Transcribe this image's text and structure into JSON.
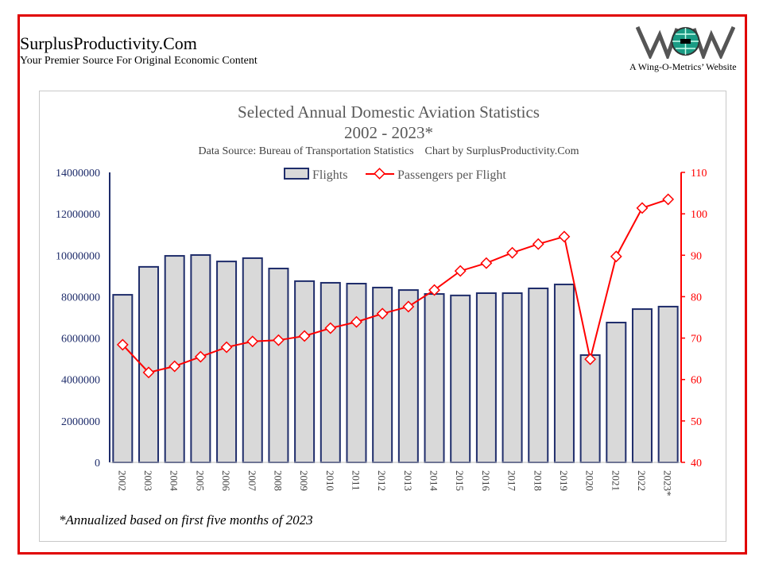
{
  "header": {
    "site_title": "SurplusProductivity.Com",
    "site_subtitle": "Your Premier Source For Original Economic Content",
    "logo_text": "WOM",
    "logo_caption": "A Wing-O-Metrics’ Website"
  },
  "footnote": "*Annualized based on first five months of 2023",
  "colors": {
    "frame": "#e00000",
    "bar_fill": "#d9d9d9",
    "bar_stroke": "#1f2d6b",
    "line": "#ff0000",
    "left_axis": "#1f2d6b",
    "right_axis": "#ff0000"
  },
  "chart_data": {
    "type": "bar+line",
    "title": "Selected Annual  Domestic Aviation Statistics",
    "subtitle": "2002 - 2023*",
    "source": "Data Source: Bureau of Transportation Statistics    Chart by SurplusProductivity.Com",
    "categories": [
      "2002",
      "2003",
      "2004",
      "2005",
      "2006",
      "2007",
      "2008",
      "2009",
      "2010",
      "2011",
      "2012",
      "2013",
      "2014",
      "2015",
      "2016",
      "2017",
      "2018",
      "2019",
      "2020",
      "2021",
      "2022",
      "2023*"
    ],
    "series": [
      {
        "name": "Flights",
        "type": "bar",
        "axis": "left",
        "values": [
          8090000,
          9440000,
          9970000,
          10010000,
          9700000,
          9860000,
          9360000,
          8750000,
          8670000,
          8630000,
          8440000,
          8320000,
          8130000,
          8060000,
          8170000,
          8170000,
          8400000,
          8590000,
          5180000,
          6750000,
          7400000,
          7520000
        ]
      },
      {
        "name": "Passengers per Flight",
        "type": "line",
        "axis": "right",
        "values": [
          68.4,
          61.7,
          63.2,
          65.5,
          67.8,
          69.2,
          69.5,
          70.5,
          72.4,
          73.9,
          75.9,
          77.6,
          81.6,
          86.2,
          88.1,
          90.6,
          92.7,
          94.5,
          64.9,
          89.7,
          101.4,
          103.5
        ]
      }
    ],
    "left_axis": {
      "ylim": [
        0,
        14000000
      ],
      "ticks": [
        "0",
        "2000000",
        "4000000",
        "6000000",
        "8000000",
        "10000000",
        "12000000",
        "14000000"
      ]
    },
    "right_axis": {
      "ylim": [
        40,
        110
      ],
      "ticks": [
        "40",
        "50",
        "60",
        "70",
        "80",
        "90",
        "100",
        "110"
      ]
    },
    "legend": "top-center",
    "grid": false
  }
}
